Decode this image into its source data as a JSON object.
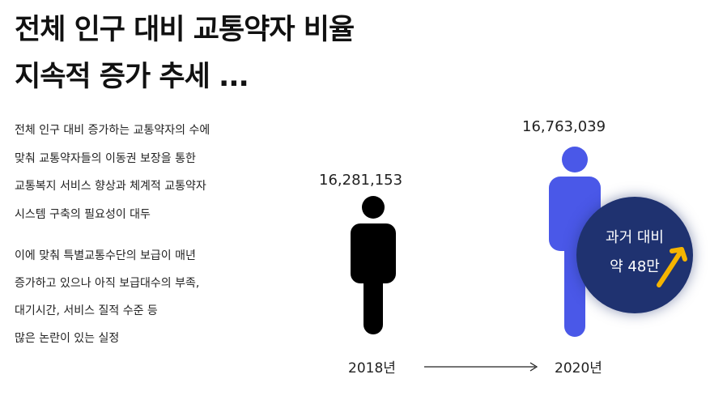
{
  "title": {
    "line1": "전체 인구 대비 교통약자 비율",
    "line2": "지속적 증가 추세 ..."
  },
  "paragraph1": [
    "전체 인구 대비 증가하는 교통약자의 수에",
    "맞춰 교통약자들의 이동권 보장을  통한",
    "교통복지 서비스 향상과 체계적 교통약자",
    "시스템 구축의 필요성이 대두"
  ],
  "paragraph2": [
    "이에 맞춰 특별교통수단의 보급이 매년",
    "증가하고  있으나  아직  보급대수의  부족,",
    "대기시간, 서비스 질적 수준 등",
    "많은 논란이 있는 실정"
  ],
  "chart": {
    "from": {
      "year": "2018년",
      "value": "16,281,153",
      "color": "#000000",
      "icon": "person-icon"
    },
    "to": {
      "year": "2020년",
      "value": "16,763,039",
      "color": "#4a58e8",
      "icon": "person-icon"
    },
    "badge": {
      "line1": "과거 대비",
      "line2": "약 48만",
      "color": "#1f3270",
      "arrow_color": "#f5b400",
      "icon": "trend-up-arrow-icon"
    },
    "timeline_icon": "right-arrow-icon"
  }
}
